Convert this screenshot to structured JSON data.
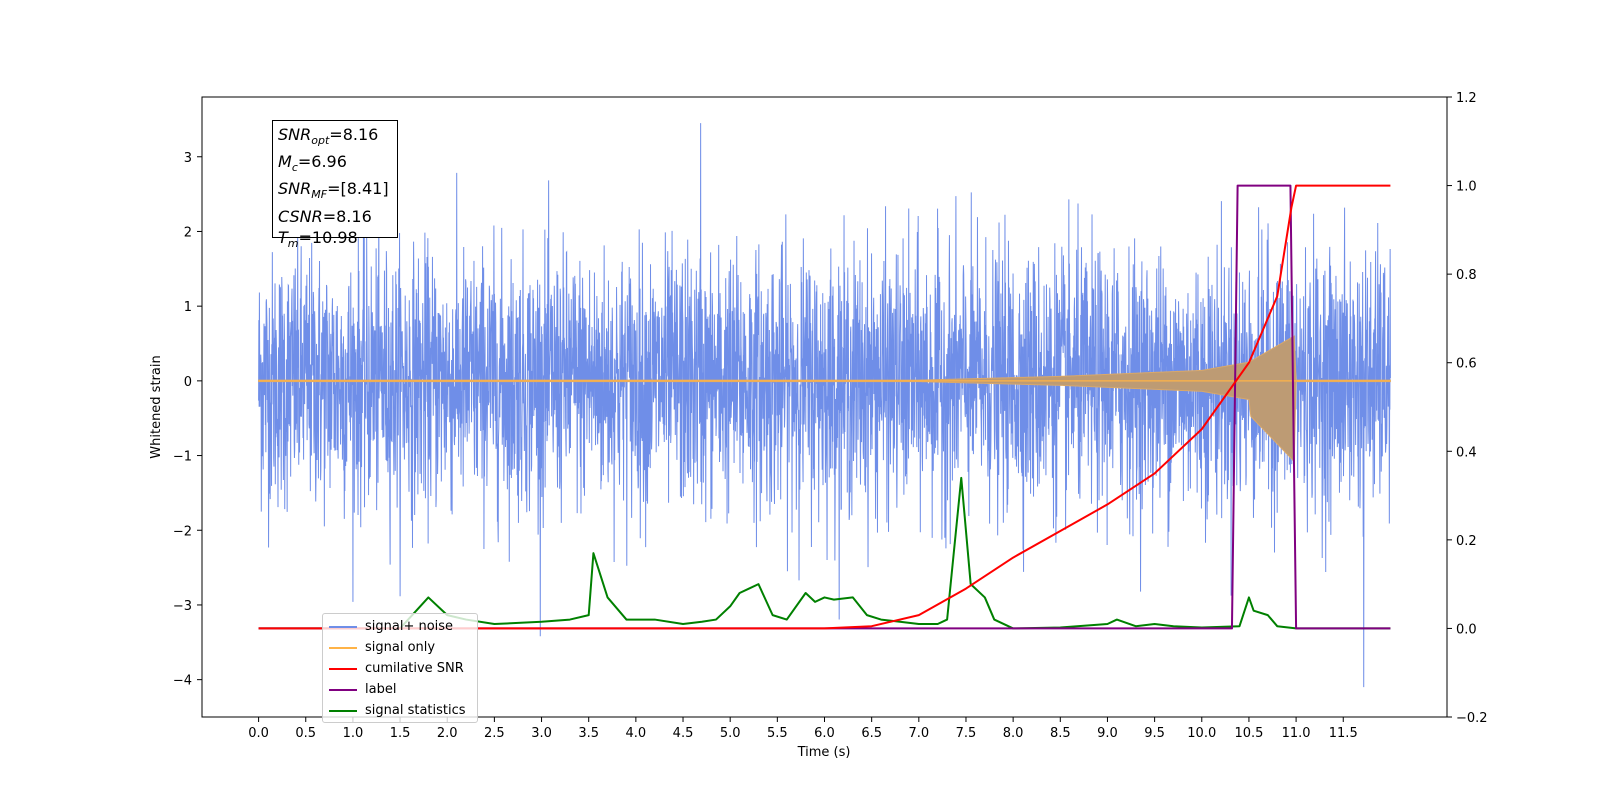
{
  "chart_data": {
    "type": "line",
    "xlabel": "Time (s)",
    "ylabel": "Whitened strain",
    "xlim": [
      -0.6,
      12.6
    ],
    "ylim_left": [
      -4.5,
      3.8
    ],
    "ylim_right": [
      -0.2,
      1.2
    ],
    "x_ticks": [
      "0.0",
      "0.5",
      "1.0",
      "1.5",
      "2.0",
      "2.5",
      "3.0",
      "3.5",
      "4.0",
      "4.5",
      "5.0",
      "5.5",
      "6.0",
      "6.5",
      "7.0",
      "7.5",
      "8.0",
      "8.5",
      "9.0",
      "9.5",
      "10.0",
      "10.5",
      "11.0",
      "11.5"
    ],
    "y_ticks_left": [
      -4,
      -3,
      -2,
      -1,
      0,
      1,
      2,
      3
    ],
    "y_ticks_right": [
      "−0.2",
      "0.0",
      "0.2",
      "0.4",
      "0.6",
      "0.8",
      "1.0",
      "1.2"
    ],
    "legend_position": "lower-left",
    "series": [
      {
        "name": "signal+ noise",
        "color": "#6f8ee8",
        "axis": "left",
        "kind": "noise",
        "x_range": [
          0.0,
          12.0
        ],
        "amplitude_typical": 1.6,
        "peaks": [
          3.45,
          -4.1
        ]
      },
      {
        "name": "signal only",
        "color": "#ffb347",
        "axis": "left",
        "kind": "chirp",
        "x_range": [
          0.0,
          12.0
        ],
        "peak_time": 10.98,
        "peak_amplitude": 0.6
      },
      {
        "name": "cumilative SNR",
        "color": "#ff0000",
        "axis": "right",
        "x": [
          0.0,
          6.0,
          6.5,
          7.0,
          7.5,
          8.0,
          8.5,
          9.0,
          9.5,
          10.0,
          10.5,
          10.8,
          10.95,
          11.0,
          12.0
        ],
        "y": [
          0.0,
          0.0,
          0.005,
          0.03,
          0.09,
          0.16,
          0.22,
          0.28,
          0.35,
          0.45,
          0.6,
          0.75,
          0.95,
          1.0,
          1.0
        ]
      },
      {
        "name": "label",
        "color": "#800080",
        "axis": "right",
        "x": [
          0.0,
          10.32,
          10.38,
          10.94,
          11.0,
          12.0
        ],
        "y": [
          0.0,
          0.0,
          1.0,
          1.0,
          0.0,
          0.0
        ]
      },
      {
        "name": "signal statistics",
        "color": "#008000",
        "axis": "right",
        "x": [
          0.0,
          1.5,
          1.8,
          2.0,
          2.2,
          2.5,
          3.0,
          3.3,
          3.5,
          3.55,
          3.7,
          3.9,
          4.0,
          4.2,
          4.5,
          4.7,
          4.85,
          5.0,
          5.1,
          5.2,
          5.3,
          5.45,
          5.6,
          5.8,
          5.9,
          6.0,
          6.1,
          6.3,
          6.45,
          6.6,
          6.8,
          7.0,
          7.2,
          7.3,
          7.45,
          7.55,
          7.7,
          7.8,
          8.0,
          8.5,
          9.0,
          9.1,
          9.3,
          9.5,
          9.7,
          10.0,
          10.4,
          10.5,
          10.55,
          10.7,
          10.8,
          11.0,
          12.0
        ],
        "y": [
          0.0,
          0.0,
          0.07,
          0.03,
          0.02,
          0.01,
          0.015,
          0.02,
          0.03,
          0.17,
          0.07,
          0.02,
          0.02,
          0.02,
          0.01,
          0.015,
          0.02,
          0.05,
          0.08,
          0.09,
          0.1,
          0.03,
          0.02,
          0.08,
          0.06,
          0.07,
          0.065,
          0.07,
          0.03,
          0.02,
          0.015,
          0.01,
          0.01,
          0.02,
          0.34,
          0.1,
          0.07,
          0.02,
          0.0,
          0.002,
          0.01,
          0.02,
          0.005,
          0.01,
          0.005,
          0.002,
          0.005,
          0.07,
          0.04,
          0.03,
          0.005,
          0.0,
          0.0
        ]
      }
    ]
  },
  "info_box": {
    "snr_opt": {
      "base": "SNR",
      "sub": "opt",
      "value": "=8.16"
    },
    "mc": {
      "base": "M",
      "sub": "c",
      "value": "=6.96"
    },
    "snr_mf": {
      "base": "SNR",
      "sub": "MF",
      "value": "=[8.41]"
    },
    "csnr": {
      "base": "CSNR",
      "value": "=8.16"
    },
    "tm": {
      "base": "T",
      "sub": "m",
      "value": "=10.98"
    }
  },
  "legend": {
    "items": [
      {
        "label": "signal+ noise",
        "color": "#6f8ee8"
      },
      {
        "label": "signal only",
        "color": "#ffb347"
      },
      {
        "label": "cumilative SNR",
        "color": "#ff0000"
      },
      {
        "label": "label",
        "color": "#800080"
      },
      {
        "label": "signal statistics",
        "color": "#008000"
      }
    ]
  }
}
